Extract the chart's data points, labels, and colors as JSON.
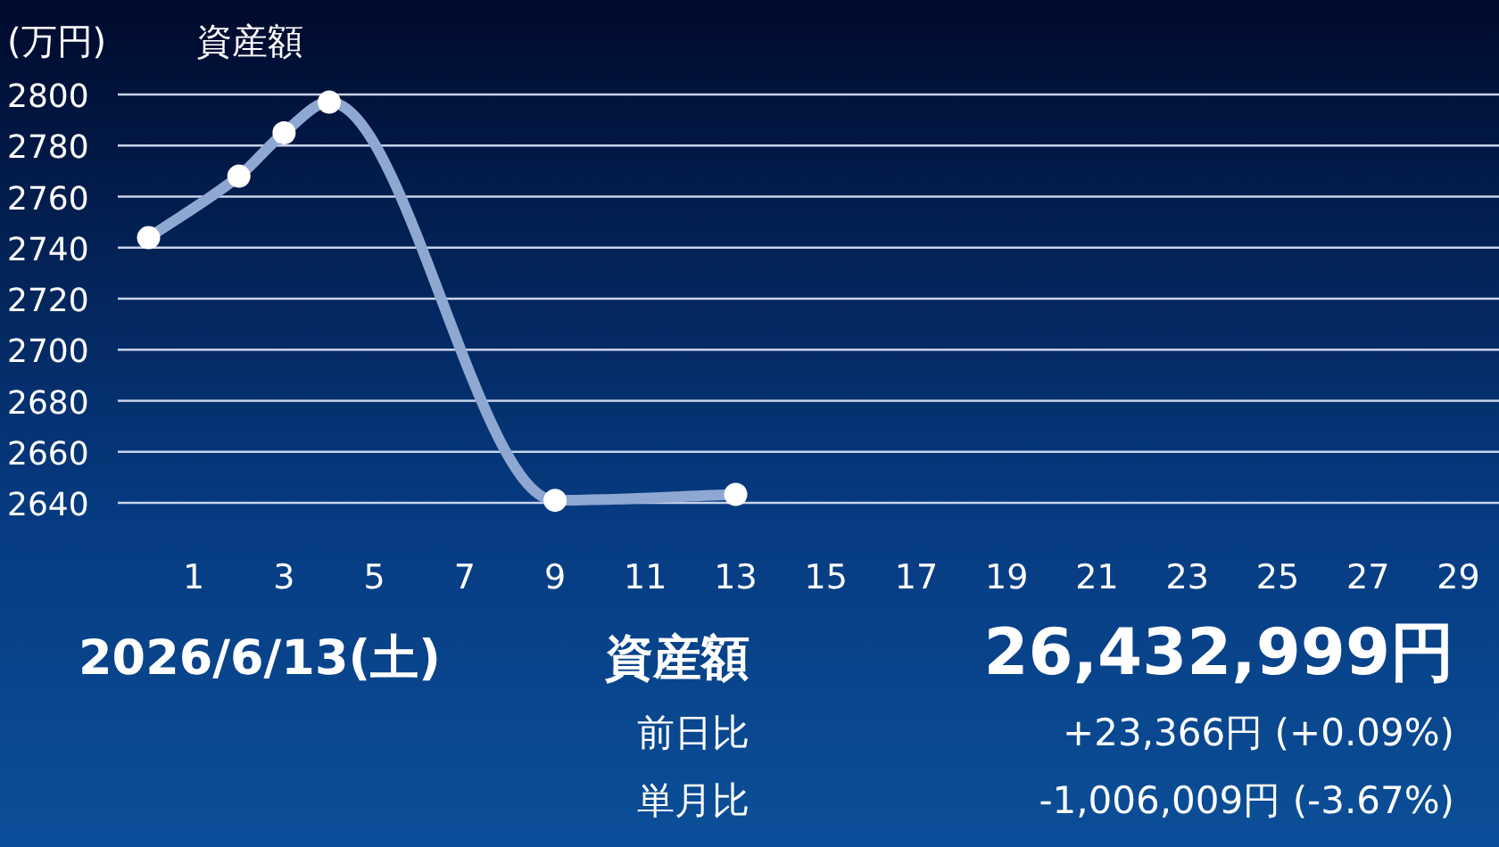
{
  "chart_data": {
    "type": "line",
    "title": "資産額",
    "ylabel": "(万円)",
    "x": [
      0,
      2,
      3,
      4,
      9,
      13
    ],
    "series": [
      {
        "color": "#8ea8d2",
        "values": [
          2743.9,
          2768,
          2785,
          2797,
          2641,
          2643.3
        ]
      }
    ],
    "xlim": [
      -0.8,
      29.9
    ],
    "xticks": [
      1,
      3,
      5,
      7,
      9,
      11,
      13,
      15,
      17,
      19,
      21,
      23,
      25,
      27,
      29
    ],
    "ylim": [
      2640,
      2800
    ],
    "yticks": [
      2640,
      2660,
      2680,
      2700,
      2720,
      2740,
      2760,
      2780,
      2800
    ],
    "grid": "y",
    "marker": "circle",
    "line_style": "solid",
    "annotations": [
      "2026/6/13(土)",
      "資産額",
      "26,432,999円",
      "前日比",
      "+23,366円 (+0.09%)",
      "単月比",
      "-1,006,009円 (-3.67%)"
    ]
  }
}
